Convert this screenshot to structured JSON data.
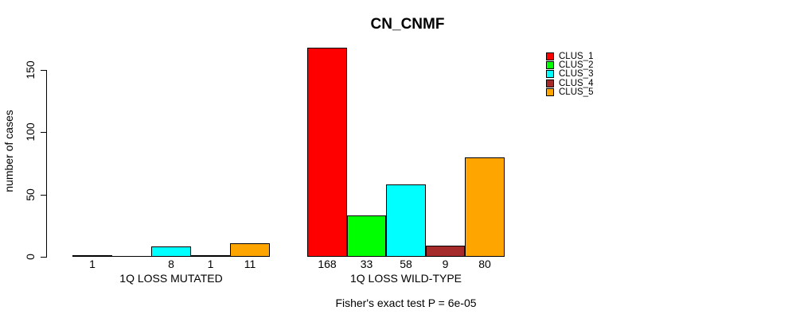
{
  "chart_data": {
    "type": "bar",
    "title": "CN_CNMF",
    "ylabel": "number of cases",
    "ylim": [
      0,
      150
    ],
    "yticks": [
      0,
      50,
      100,
      150
    ],
    "grid": false,
    "legend_position": "top-right",
    "series": [
      "CLUS_1",
      "CLUS_2",
      "CLUS_3",
      "CLUS_4",
      "CLUS_5"
    ],
    "colors": [
      "#FF0000",
      "#00FF00",
      "#00FFFF",
      "#A52A2A",
      "#FFA500"
    ],
    "groups": [
      {
        "label": "1Q LOSS MUTATED",
        "values": [
          1,
          0,
          8,
          1,
          11
        ],
        "value_labels": [
          "1",
          "",
          "8",
          "1",
          "11"
        ]
      },
      {
        "label": "1Q LOSS WILD-TYPE",
        "values": [
          168,
          33,
          58,
          9,
          80
        ],
        "value_labels": [
          "168",
          "33",
          "58",
          "9",
          "80"
        ]
      }
    ],
    "annotation": "Fisher's exact test P = 6e-05"
  }
}
